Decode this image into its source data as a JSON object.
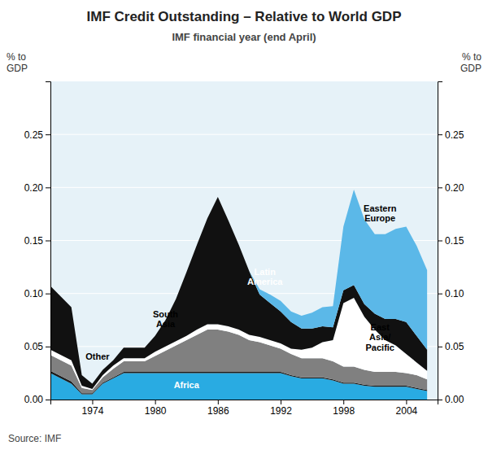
{
  "chart_data": {
    "type": "area",
    "stacked": true,
    "title": "IMF Credit Outstanding – Relative to World GDP",
    "subtitle": "IMF financial year (end April)",
    "ylabel": "% to\nGDP",
    "y2label": "% to\nGDP",
    "source": "Source: IMF",
    "x": [
      1970,
      1971,
      1972,
      1973,
      1974,
      1975,
      1976,
      1977,
      1978,
      1979,
      1980,
      1981,
      1982,
      1983,
      1984,
      1985,
      1986,
      1987,
      1988,
      1989,
      1990,
      1991,
      1992,
      1993,
      1994,
      1995,
      1996,
      1997,
      1998,
      1999,
      2000,
      2001,
      2002,
      2003,
      2004,
      2005,
      2006
    ],
    "series": [
      {
        "name": "Africa",
        "color": "#29abe2",
        "values": [
          0.025,
          0.02,
          0.015,
          0.005,
          0.005,
          0.015,
          0.02,
          0.025,
          0.025,
          0.025,
          0.025,
          0.025,
          0.025,
          0.025,
          0.025,
          0.025,
          0.025,
          0.025,
          0.025,
          0.025,
          0.025,
          0.025,
          0.025,
          0.022,
          0.02,
          0.02,
          0.02,
          0.018,
          0.015,
          0.015,
          0.013,
          0.012,
          0.012,
          0.012,
          0.012,
          0.01,
          0.008
        ]
      },
      {
        "name": "Other",
        "color": "#1a1a1a",
        "values": [
          0.002,
          0.002,
          0.002,
          0.001,
          0.001,
          0.001,
          0.001,
          0.001,
          0.001,
          0.001,
          0.001,
          0.001,
          0.001,
          0.001,
          0.001,
          0.001,
          0.001,
          0.001,
          0.001,
          0.001,
          0.001,
          0.001,
          0.001,
          0.001,
          0.001,
          0.001,
          0.001,
          0.001,
          0.001,
          0.001,
          0.001,
          0.001,
          0.001,
          0.001,
          0.001,
          0.001,
          0.001
        ]
      },
      {
        "name": "South Asia",
        "color": "#808080",
        "values": [
          0.015,
          0.015,
          0.015,
          0.005,
          0.003,
          0.005,
          0.008,
          0.01,
          0.01,
          0.01,
          0.015,
          0.02,
          0.025,
          0.03,
          0.035,
          0.04,
          0.04,
          0.038,
          0.035,
          0.03,
          0.028,
          0.025,
          0.022,
          0.02,
          0.018,
          0.018,
          0.018,
          0.017,
          0.015,
          0.015,
          0.014,
          0.013,
          0.013,
          0.013,
          0.012,
          0.012,
          0.01
        ]
      },
      {
        "name": "East Asia/Pacific",
        "color": "#ffffff",
        "values": [
          0.005,
          0.005,
          0.005,
          0.002,
          0.001,
          0.002,
          0.003,
          0.003,
          0.003,
          0.003,
          0.004,
          0.004,
          0.004,
          0.004,
          0.005,
          0.005,
          0.005,
          0.005,
          0.005,
          0.005,
          0.005,
          0.005,
          0.005,
          0.005,
          0.008,
          0.01,
          0.015,
          0.02,
          0.06,
          0.065,
          0.05,
          0.04,
          0.03,
          0.025,
          0.018,
          0.012,
          0.008
        ]
      },
      {
        "name": "Latin America",
        "color": "#111111",
        "values": [
          0.06,
          0.055,
          0.05,
          0.01,
          0.005,
          0.005,
          0.005,
          0.01,
          0.01,
          0.01,
          0.015,
          0.025,
          0.04,
          0.06,
          0.08,
          0.1,
          0.12,
          0.1,
          0.08,
          0.06,
          0.04,
          0.035,
          0.03,
          0.025,
          0.02,
          0.018,
          0.015,
          0.012,
          0.012,
          0.012,
          0.012,
          0.015,
          0.02,
          0.025,
          0.03,
          0.025,
          0.02
        ]
      },
      {
        "name": "Eastern Europe",
        "color": "#5bb8e8",
        "values": [
          0.0,
          0.0,
          0.0,
          0.0,
          0.0,
          0.0,
          0.0,
          0.0,
          0.0,
          0.0,
          0.0,
          0.0,
          0.0,
          0.0,
          0.0,
          0.0,
          0.0,
          0.0,
          0.0,
          0.0,
          0.005,
          0.008,
          0.01,
          0.01,
          0.012,
          0.015,
          0.018,
          0.02,
          0.06,
          0.09,
          0.08,
          0.075,
          0.08,
          0.085,
          0.09,
          0.085,
          0.075
        ]
      }
    ],
    "xlim": [
      1970,
      2007
    ],
    "xticks": [
      1974,
      1980,
      1986,
      1992,
      1998,
      2004
    ],
    "ylim": [
      0,
      0.3
    ],
    "yticks": [
      {
        "value": 0.0,
        "label": "0.00"
      },
      {
        "value": 0.05,
        "label": "0.05"
      },
      {
        "value": 0.1,
        "label": "0.10"
      },
      {
        "value": 0.15,
        "label": "0.15"
      },
      {
        "value": 0.2,
        "label": "0.20"
      },
      {
        "value": 0.25,
        "label": "0.25"
      }
    ],
    "y2lim": [
      0,
      0.3
    ],
    "y2ticks": [
      {
        "value": 0.0,
        "label": "0.00"
      },
      {
        "value": 0.05,
        "label": "0.05"
      },
      {
        "value": 0.1,
        "label": "0.10"
      },
      {
        "value": 0.15,
        "label": "0.15"
      },
      {
        "value": 0.2,
        "label": "0.20"
      },
      {
        "value": 0.25,
        "label": "0.25"
      }
    ],
    "grid": true,
    "annotations": [
      {
        "text": "Other",
        "x": 1974.5,
        "y": 0.04,
        "color": "black"
      },
      {
        "text": "Africa",
        "x": 1983,
        "y": 0.013,
        "color": "white"
      },
      {
        "text": "South\nAsia",
        "x": 1981,
        "y": 0.075,
        "color": "black"
      },
      {
        "text": "East\nAsia/\nPacific",
        "x": 2001.5,
        "y": 0.058,
        "color": "black"
      },
      {
        "text": "Latin\nAmerica",
        "x": 1990.5,
        "y": 0.115,
        "color": "white"
      },
      {
        "text": "Eastern\nEurope",
        "x": 2001.5,
        "y": 0.175,
        "color": "black"
      }
    ]
  }
}
